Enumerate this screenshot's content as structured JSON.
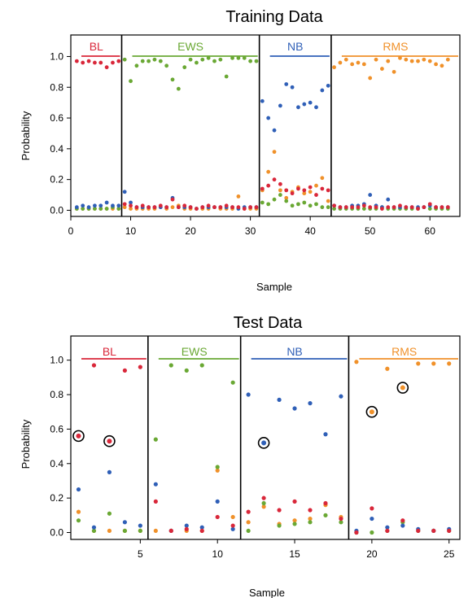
{
  "colors": {
    "BL": "#d9273a",
    "EWS": "#6aa834",
    "NB": "#2f5fb7",
    "RMS": "#f0912a",
    "axis": "#000000"
  },
  "class_order": [
    "BL",
    "EWS",
    "NB",
    "RMS"
  ],
  "chart_data": [
    {
      "type": "scatter",
      "title": "Training Data",
      "xlabel": "Sample",
      "ylabel": "Probability",
      "xlim": [
        0,
        65
      ],
      "ylim": [
        -0.04,
        1.14
      ],
      "xticks": [
        0,
        10,
        20,
        30,
        40,
        50,
        60
      ],
      "yticks": [
        "0.0",
        "0.2",
        "0.4",
        "0.6",
        "0.8",
        "1.0"
      ],
      "groups": [
        {
          "label": "BL",
          "start": 1,
          "end": 8
        },
        {
          "label": "EWS",
          "start": 9,
          "end": 31
        },
        {
          "label": "NB",
          "start": 32,
          "end": 43
        },
        {
          "label": "RMS",
          "start": 44,
          "end": 63
        }
      ],
      "separators": [
        8.5,
        31.5,
        43.5
      ],
      "series": [
        {
          "name": "BL",
          "values": [
            0.97,
            0.96,
            0.97,
            0.96,
            0.96,
            0.93,
            0.96,
            0.97,
            0.04,
            0.03,
            0.02,
            0.03,
            0.02,
            0.02,
            0.03,
            0.02,
            0.07,
            0.02,
            0.03,
            0.02,
            0.01,
            0.02,
            0.03,
            0.02,
            0.02,
            0.03,
            0.02,
            0.02,
            0.01,
            0.02,
            0.02,
            0.14,
            0.16,
            0.2,
            0.17,
            0.13,
            0.11,
            0.14,
            0.13,
            0.15,
            0.1,
            0.14,
            0.13,
            0.03,
            0.02,
            0.02,
            0.02,
            0.02,
            0.03,
            0.02,
            0.02,
            0.01,
            0.02,
            0.02,
            0.03,
            0.02,
            0.02,
            0.01,
            0.02,
            0.04,
            0.02,
            0.02,
            0.02
          ]
        },
        {
          "name": "EWS",
          "values": [
            0.01,
            0.01,
            0.01,
            0.01,
            0.01,
            0.01,
            0.02,
            0.01,
            0.98,
            0.84,
            0.94,
            0.97,
            0.97,
            0.98,
            0.97,
            0.94,
            0.85,
            0.79,
            0.93,
            0.98,
            0.96,
            0.98,
            0.99,
            0.97,
            0.98,
            0.87,
            0.99,
            0.99,
            0.99,
            0.97,
            0.97,
            0.05,
            0.04,
            0.07,
            0.1,
            0.06,
            0.03,
            0.04,
            0.05,
            0.03,
            0.04,
            0.02,
            0.02,
            0.01,
            0.01,
            0.01,
            0.01,
            0.01,
            0.01,
            0.01,
            0.01,
            0.02,
            0.01,
            0.01,
            0.01,
            0.01,
            0.01,
            0.01,
            0.02,
            0.01,
            0.01,
            0.01,
            0.01
          ]
        },
        {
          "name": "NB",
          "values": [
            0.02,
            0.03,
            0.02,
            0.03,
            0.03,
            0.05,
            0.03,
            0.03,
            0.12,
            0.05,
            0.02,
            0.02,
            0.02,
            0.02,
            0.02,
            0.02,
            0.08,
            0.02,
            0.02,
            0.02,
            0.01,
            0.02,
            0.02,
            0.02,
            0.02,
            0.02,
            0.02,
            0.01,
            0.02,
            0.02,
            0.02,
            0.71,
            0.6,
            0.52,
            0.68,
            0.82,
            0.8,
            0.67,
            0.69,
            0.7,
            0.67,
            0.78,
            0.81,
            0.03,
            0.02,
            0.02,
            0.03,
            0.03,
            0.04,
            0.1,
            0.03,
            0.02,
            0.07,
            0.02,
            0.02,
            0.02,
            0.02,
            0.02,
            0.02,
            0.03,
            0.02,
            0.02,
            0.02
          ]
        },
        {
          "name": "RMS",
          "values": [
            0.01,
            0.01,
            0.01,
            0.01,
            0.01,
            0.01,
            0.01,
            0.01,
            0.02,
            0.01,
            0.01,
            0.01,
            0.01,
            0.01,
            0.02,
            0.01,
            0.02,
            0.03,
            0.01,
            0.01,
            0.01,
            0.01,
            0.01,
            0.02,
            0.01,
            0.01,
            0.01,
            0.09,
            0.01,
            0.01,
            0.01,
            0.13,
            0.25,
            0.38,
            0.13,
            0.08,
            0.12,
            0.15,
            0.11,
            0.12,
            0.16,
            0.21,
            0.06,
            0.93,
            0.96,
            0.98,
            0.95,
            0.96,
            0.95,
            0.86,
            0.98,
            0.92,
            0.97,
            0.9,
            0.99,
            0.98,
            0.97,
            0.97,
            0.98,
            0.97,
            0.95,
            0.94,
            0.98
          ]
        }
      ]
    },
    {
      "type": "scatter",
      "title": "Test Data",
      "xlabel": "Sample",
      "ylabel": "Probability",
      "xlim": [
        0.5,
        25.7
      ],
      "ylim": [
        -0.04,
        1.14
      ],
      "xticks": [
        5,
        10,
        15,
        20,
        25
      ],
      "yticks": [
        "0.0",
        "0.2",
        "0.4",
        "0.6",
        "0.8",
        "1.0"
      ],
      "groups": [
        {
          "label": "BL",
          "start": 1,
          "end": 5
        },
        {
          "label": "EWS",
          "start": 6,
          "end": 11
        },
        {
          "label": "NB",
          "start": 12,
          "end": 18
        },
        {
          "label": "RMS",
          "start": 19,
          "end": 25
        }
      ],
      "separators": [
        5.5,
        11.5,
        18.5
      ],
      "series": [
        {
          "name": "BL",
          "values": [
            0.56,
            0.97,
            0.53,
            0.94,
            0.96,
            0.18,
            0.01,
            0.02,
            0.01,
            0.09,
            0.04,
            0.12,
            0.2,
            0.13,
            0.18,
            0.13,
            0.17,
            0.08,
            0.0,
            0.14,
            0.01,
            0.07,
            0.01,
            0.01,
            0.01
          ]
        },
        {
          "name": "EWS",
          "values": [
            0.07,
            0.01,
            0.11,
            0.01,
            0.01,
            0.54,
            0.97,
            0.94,
            0.97,
            0.38,
            0.87,
            0.01,
            0.17,
            0.04,
            0.05,
            0.06,
            0.1,
            0.06,
            0.0,
            0.0,
            0.01,
            0.06,
            0.01,
            0.01,
            0.01
          ]
        },
        {
          "name": "NB",
          "values": [
            0.25,
            0.03,
            0.35,
            0.06,
            0.04,
            0.28,
            0.01,
            0.04,
            0.03,
            0.18,
            0.02,
            0.8,
            0.52,
            0.77,
            0.72,
            0.75,
            0.57,
            0.79,
            0.01,
            0.08,
            0.03,
            0.04,
            0.02,
            0.01,
            0.02
          ]
        },
        {
          "name": "RMS",
          "values": [
            0.12,
            0.01,
            0.01,
            0.01,
            0.01,
            0.01,
            0.01,
            0.01,
            0.01,
            0.36,
            0.09,
            0.06,
            0.15,
            0.05,
            0.07,
            0.08,
            0.16,
            0.09,
            0.99,
            0.7,
            0.95,
            0.84,
            0.98,
            0.98,
            0.98
          ]
        }
      ],
      "circled": [
        {
          "x": 1,
          "value": 0.56,
          "class": "BL"
        },
        {
          "x": 3,
          "value": 0.53,
          "class": "BL"
        },
        {
          "x": 13,
          "value": 0.52,
          "class": "NB"
        },
        {
          "x": 20,
          "value": 0.7,
          "class": "RMS"
        },
        {
          "x": 22,
          "value": 0.84,
          "class": "RMS"
        }
      ]
    }
  ]
}
